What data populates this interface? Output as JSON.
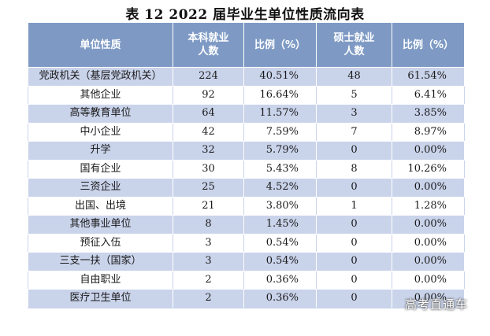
{
  "title": "表 12  2022 届毕业生单位性质流向表",
  "headers": {
    "unit_type": "单位性质",
    "bachelor_count": "本科就业\n人数",
    "bachelor_pct": "比例（%）",
    "master_count": "硕士就业\n人数",
    "master_pct": "比例（%）"
  },
  "rows": [
    {
      "unit": "党政机关（基层党政机关）",
      "b_count": "224",
      "b_pct": "40.51%",
      "m_count": "48",
      "m_pct": "61.54%"
    },
    {
      "unit": "其他企业",
      "b_count": "92",
      "b_pct": "16.64%",
      "m_count": "5",
      "m_pct": "6.41%"
    },
    {
      "unit": "高等教育单位",
      "b_count": "64",
      "b_pct": "11.57%",
      "m_count": "3",
      "m_pct": "3.85%"
    },
    {
      "unit": "中小企业",
      "b_count": "42",
      "b_pct": "7.59%",
      "m_count": "7",
      "m_pct": "8.97%"
    },
    {
      "unit": "升学",
      "b_count": "32",
      "b_pct": "5.79%",
      "m_count": "0",
      "m_pct": "0.00%"
    },
    {
      "unit": "国有企业",
      "b_count": "30",
      "b_pct": "5.43%",
      "m_count": "8",
      "m_pct": "10.26%"
    },
    {
      "unit": "三资企业",
      "b_count": "25",
      "b_pct": "4.52%",
      "m_count": "0",
      "m_pct": "0.00%"
    },
    {
      "unit": "出国、出境",
      "b_count": "21",
      "b_pct": "3.80%",
      "m_count": "1",
      "m_pct": "1.28%"
    },
    {
      "unit": "其他事业单位",
      "b_count": "8",
      "b_pct": "1.45%",
      "m_count": "0",
      "m_pct": "0.00%"
    },
    {
      "unit": "预征入伍",
      "b_count": "3",
      "b_pct": "0.54%",
      "m_count": "0",
      "m_pct": "0.00%"
    },
    {
      "unit": "三支一扶（国家）",
      "b_count": "3",
      "b_pct": "0.54%",
      "m_count": "0",
      "m_pct": "0.00%"
    },
    {
      "unit": "自由职业",
      "b_count": "2",
      "b_pct": "0.36%",
      "m_count": "0",
      "m_pct": "0.00%"
    },
    {
      "unit": "医疗卫生单位",
      "b_count": "2",
      "b_pct": "0.36%",
      "m_count": "0",
      "m_pct": "0.00%"
    }
  ],
  "watermark": "高考直通车"
}
